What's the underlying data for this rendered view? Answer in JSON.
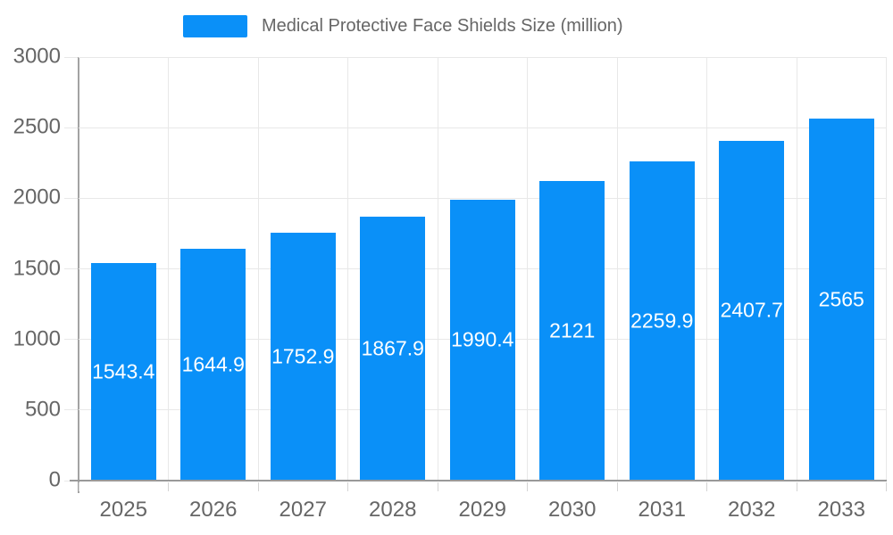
{
  "legend": {
    "label": "Medical Protective Face Shields Size (million)"
  },
  "colors": {
    "bar": "#0A90F8",
    "grid": "#E8E8E8",
    "tick": "#D4D4D4",
    "y_axis_line": "#A3A3A3",
    "x_axis_line": "#999999",
    "text": "#666666",
    "value_label": "#FFFFFF",
    "background": "#FFFFFF"
  },
  "chart_data": {
    "type": "bar",
    "title": "Medical Protective Face Shields Size (million)",
    "categories": [
      "2025",
      "2026",
      "2027",
      "2028",
      "2029",
      "2030",
      "2031",
      "2032",
      "2033"
    ],
    "values": [
      1543.4,
      1644.9,
      1752.9,
      1867.9,
      1990.4,
      2121,
      2259.9,
      2407.7,
      2565
    ],
    "value_labels": [
      "1543.4",
      "1644.9",
      "1752.9",
      "1867.9",
      "1990.4",
      "2121",
      "2259.9",
      "2407.7",
      "2565"
    ],
    "xlabel": "",
    "ylabel": "",
    "ylim": [
      0,
      3000
    ],
    "yticks": [
      0,
      500,
      1000,
      1500,
      2000,
      2500,
      3000
    ],
    "grid": true,
    "legend_position": "top",
    "value_label_position": "inside-center"
  }
}
